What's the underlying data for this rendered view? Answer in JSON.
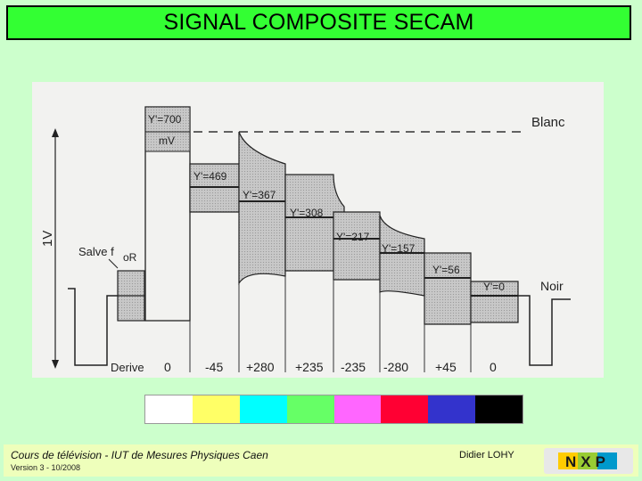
{
  "title": "SIGNAL COMPOSITE SECAM",
  "diagram": {
    "amplitude_label": "1V",
    "burst_label": "Salve f",
    "burst_sub": "oR",
    "level_top": "Blanc",
    "level_bottom": "Noir",
    "bottom_left_label": "Derive",
    "luminance_labels": [
      "Y'=700",
      "mV",
      "Y'=469",
      "Y'=367",
      "Y'=308",
      "Y'=217",
      "Y'=157",
      "Y'=56",
      "Y'=0"
    ],
    "derive_values": [
      "0",
      "-45",
      "+280",
      "+235",
      "-235",
      "-280",
      "+45",
      "0"
    ]
  },
  "color_bars": [
    "#ffffff",
    "#ffff66",
    "#00ffff",
    "#66ff66",
    "#ff66ff",
    "#ff0033",
    "#3333cc",
    "#000000"
  ],
  "footer": {
    "course": "Cours de télévision - IUT de Mesures Physiques Caen",
    "version": "Version 3 - 10/2008",
    "author": "Didier LOHY"
  },
  "logo": {
    "text": "NXP",
    "colors": [
      "#ffcc00",
      "#99cc33",
      "#0099cc"
    ]
  }
}
